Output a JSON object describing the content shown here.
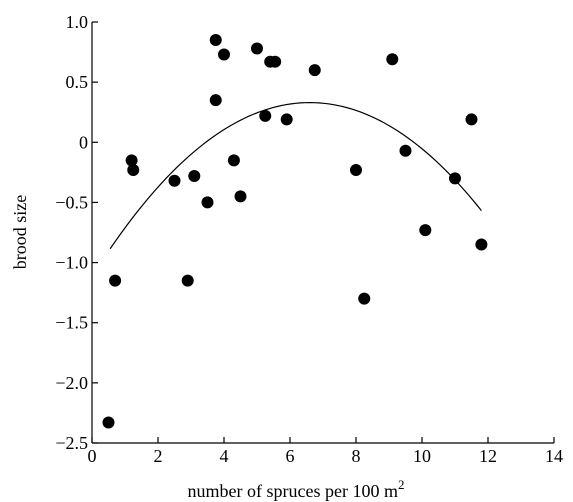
{
  "chart_data": {
    "type": "scatter",
    "title": "",
    "xlabel": "number of spruces per 100 m",
    "xlabel_superscript": "2",
    "ylabel": "brood size",
    "xlim": [
      0,
      14
    ],
    "ylim": [
      -2.5,
      1.0
    ],
    "x_ticks": [
      0,
      2,
      4,
      6,
      8,
      10,
      12,
      14
    ],
    "x_tick_labels": [
      "0",
      "2",
      "4",
      "6",
      "8",
      "10",
      "12",
      "14"
    ],
    "y_ticks": [
      1.0,
      0.5,
      0,
      -0.5,
      -1.0,
      -1.5,
      -2.0,
      -2.5
    ],
    "y_tick_labels": [
      "1.0",
      "0.5",
      "0",
      "−0.5",
      "−1.0",
      "−1.5",
      "−2.0",
      "−2.5"
    ],
    "grid": false,
    "legend": "none",
    "points": [
      {
        "x": 0.5,
        "y": -2.33
      },
      {
        "x": 0.7,
        "y": -1.15
      },
      {
        "x": 1.2,
        "y": -0.15
      },
      {
        "x": 1.25,
        "y": -0.23
      },
      {
        "x": 2.5,
        "y": -0.32
      },
      {
        "x": 2.9,
        "y": -1.15
      },
      {
        "x": 3.1,
        "y": -0.28
      },
      {
        "x": 3.5,
        "y": -0.5
      },
      {
        "x": 3.75,
        "y": 0.85
      },
      {
        "x": 3.75,
        "y": 0.35
      },
      {
        "x": 4.0,
        "y": 0.73
      },
      {
        "x": 4.3,
        "y": -0.15
      },
      {
        "x": 4.5,
        "y": -0.45
      },
      {
        "x": 5.0,
        "y": 0.78
      },
      {
        "x": 5.25,
        "y": 0.22
      },
      {
        "x": 5.4,
        "y": 0.67
      },
      {
        "x": 5.55,
        "y": 0.67
      },
      {
        "x": 5.9,
        "y": 0.19
      },
      {
        "x": 6.75,
        "y": 0.6
      },
      {
        "x": 8.0,
        "y": -0.23
      },
      {
        "x": 8.25,
        "y": -1.3
      },
      {
        "x": 9.1,
        "y": 0.69
      },
      {
        "x": 9.5,
        "y": -0.07
      },
      {
        "x": 10.1,
        "y": -0.73
      },
      {
        "x": 11.0,
        "y": -0.3
      },
      {
        "x": 11.5,
        "y": 0.19
      },
      {
        "x": 11.8,
        "y": -0.85
      }
    ],
    "fit_curve": {
      "type": "quadratic",
      "x_range": [
        0.55,
        11.8
      ],
      "vertex": [
        6.6,
        0.33
      ],
      "a": -0.0332
    }
  }
}
